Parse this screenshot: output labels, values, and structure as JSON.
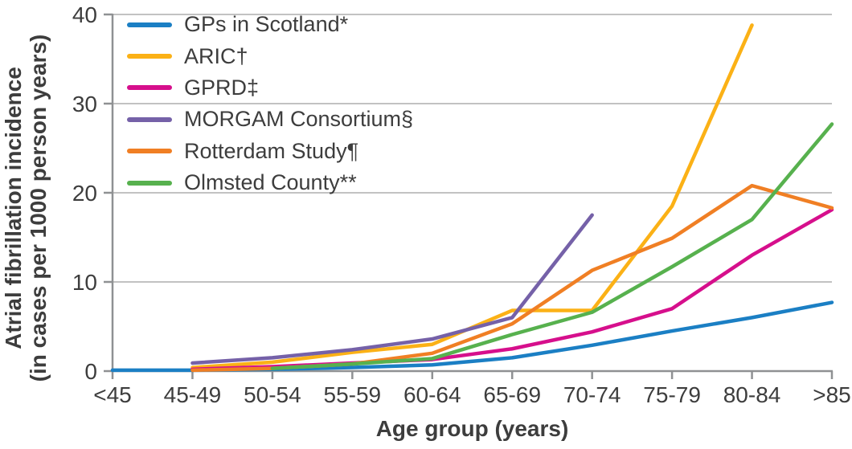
{
  "chart_data": {
    "type": "line",
    "title": "",
    "xlabel": "Age group (years)",
    "ylabel_line1": "Atrial fibrillation incidence",
    "ylabel_line2": "(in cases per 1000 person years)",
    "categories": [
      "<45",
      "45-49",
      "50-54",
      "55-59",
      "60-64",
      "65-69",
      "70-74",
      "75-79",
      "80-84",
      ">85"
    ],
    "ylim": [
      0,
      40
    ],
    "yticks": [
      0,
      10,
      20,
      30,
      40
    ],
    "grid": "horizontal-gridlines-on",
    "legend_position": "top-left-inside-plot",
    "series": [
      {
        "name": "GPs in Scotland*",
        "color": "#1b7fc4",
        "values": [
          0.1,
          0.1,
          0.2,
          0.4,
          0.7,
          1.5,
          2.9,
          4.5,
          6.0,
          7.7
        ]
      },
      {
        "name": "ARIC†",
        "color": "#fbb116",
        "values": [
          null,
          0.4,
          1.0,
          2.1,
          3.0,
          6.8,
          6.8,
          18.5,
          38.8,
          null
        ]
      },
      {
        "name": "GPRD‡",
        "color": "#d60f8c",
        "values": [
          null,
          0.2,
          0.5,
          0.9,
          1.3,
          2.5,
          4.4,
          7.0,
          13.0,
          18.1
        ]
      },
      {
        "name": "MORGAM Consortium§",
        "color": "#7561a8",
        "values": [
          null,
          0.9,
          1.5,
          2.4,
          3.6,
          6.0,
          17.5,
          null,
          null,
          null
        ]
      },
      {
        "name": "Rotterdam Study¶",
        "color": "#f07f24",
        "values": [
          null,
          0.1,
          0.3,
          0.8,
          2.0,
          5.3,
          11.3,
          14.9,
          20.8,
          18.3
        ]
      },
      {
        "name": "Olmsted County**",
        "color": "#57b14e",
        "values": [
          null,
          null,
          0.3,
          0.8,
          1.4,
          4.1,
          6.6,
          11.7,
          17.0,
          27.7
        ]
      }
    ],
    "axis_color": "#8f9193",
    "grid_color": "#c2c2c2",
    "text_color": "#3d3d3d"
  }
}
